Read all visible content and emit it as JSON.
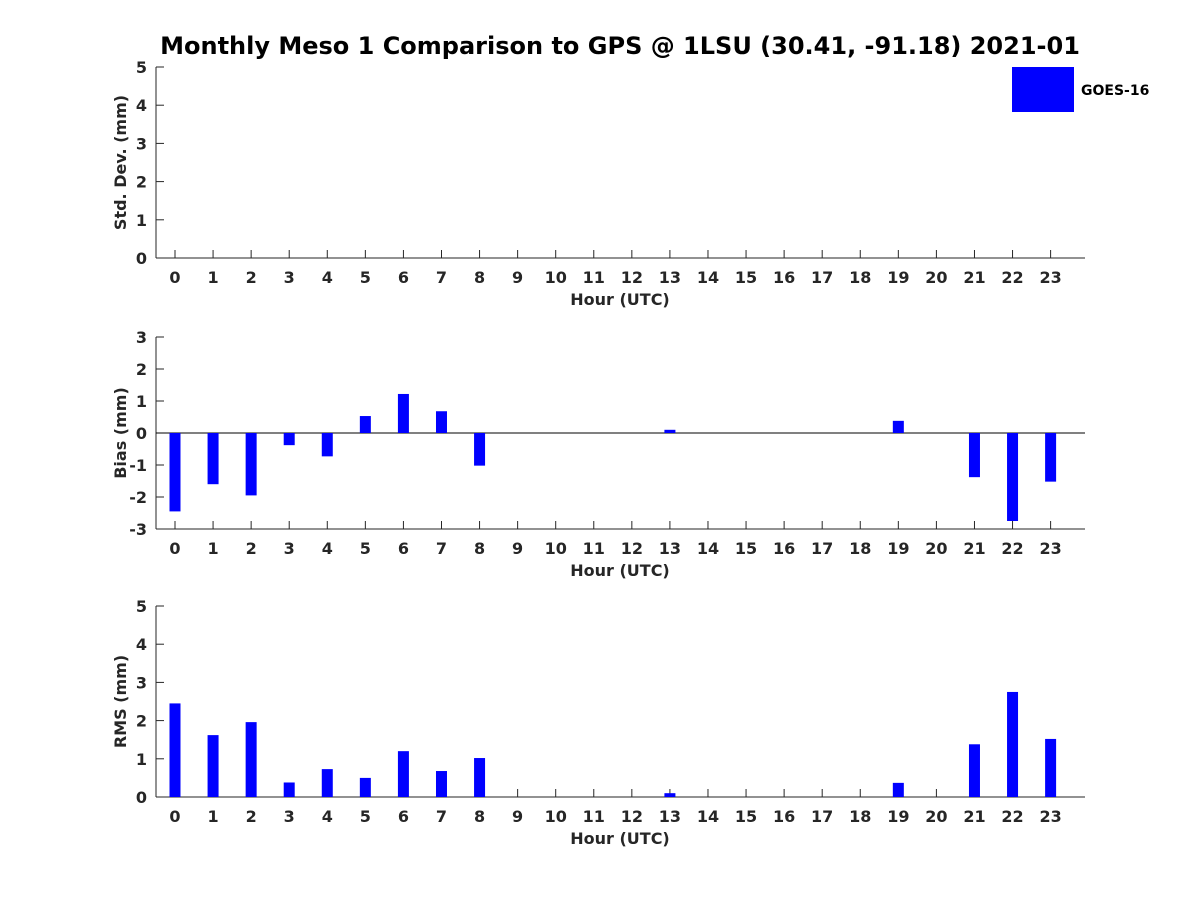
{
  "title": "Monthly Meso 1 Comparison to GPS @ 1LSU (30.41, -91.18) 2021-01",
  "legend": {
    "label": "GOES-16",
    "color": "#0000ff"
  },
  "chart_data": [
    {
      "type": "bar",
      "ylabel": "Std. Dev. (mm)",
      "xlabel": "Hour (UTC)",
      "ylim": [
        0,
        5
      ],
      "yticks": [
        0,
        1,
        2,
        3,
        4,
        5
      ],
      "categories": [
        "0",
        "1",
        "2",
        "3",
        "4",
        "5",
        "6",
        "7",
        "8",
        "9",
        "10",
        "11",
        "12",
        "13",
        "14",
        "15",
        "16",
        "17",
        "18",
        "19",
        "20",
        "21",
        "22",
        "23"
      ],
      "series": [
        {
          "name": "GOES-16",
          "color": "#0000ff",
          "values": [
            0,
            0,
            0,
            0,
            0,
            0,
            0,
            0,
            0,
            0,
            0,
            0,
            0,
            0,
            0,
            0,
            0,
            0,
            0,
            0,
            0,
            0,
            0,
            0
          ]
        }
      ]
    },
    {
      "type": "bar",
      "ylabel": "Bias (mm)",
      "xlabel": "Hour (UTC)",
      "ylim": [
        -3,
        3
      ],
      "yticks": [
        -3,
        -2,
        -1,
        0,
        1,
        2,
        3
      ],
      "categories": [
        "0",
        "1",
        "2",
        "3",
        "4",
        "5",
        "6",
        "7",
        "8",
        "9",
        "10",
        "11",
        "12",
        "13",
        "14",
        "15",
        "16",
        "17",
        "18",
        "19",
        "20",
        "21",
        "22",
        "23"
      ],
      "series": [
        {
          "name": "GOES-16",
          "color": "#0000ff",
          "values": [
            -2.45,
            -1.6,
            -1.95,
            -0.38,
            -0.73,
            0.53,
            1.22,
            0.68,
            -1.02,
            0,
            0,
            0,
            0,
            0.1,
            0,
            0,
            0,
            0,
            0,
            0.38,
            0,
            -1.38,
            -2.75,
            -1.52
          ]
        }
      ]
    },
    {
      "type": "bar",
      "ylabel": "RMS (mm)",
      "xlabel": "Hour (UTC)",
      "ylim": [
        0,
        5
      ],
      "yticks": [
        0,
        1,
        2,
        3,
        4,
        5
      ],
      "categories": [
        "0",
        "1",
        "2",
        "3",
        "4",
        "5",
        "6",
        "7",
        "8",
        "9",
        "10",
        "11",
        "12",
        "13",
        "14",
        "15",
        "16",
        "17",
        "18",
        "19",
        "20",
        "21",
        "22",
        "23"
      ],
      "series": [
        {
          "name": "GOES-16",
          "color": "#0000ff",
          "values": [
            2.45,
            1.62,
            1.96,
            0.38,
            0.73,
            0.5,
            1.2,
            0.68,
            1.02,
            0,
            0,
            0,
            0,
            0.1,
            0,
            0,
            0,
            0,
            0,
            0.37,
            0,
            1.38,
            2.75,
            1.52
          ]
        }
      ]
    }
  ]
}
